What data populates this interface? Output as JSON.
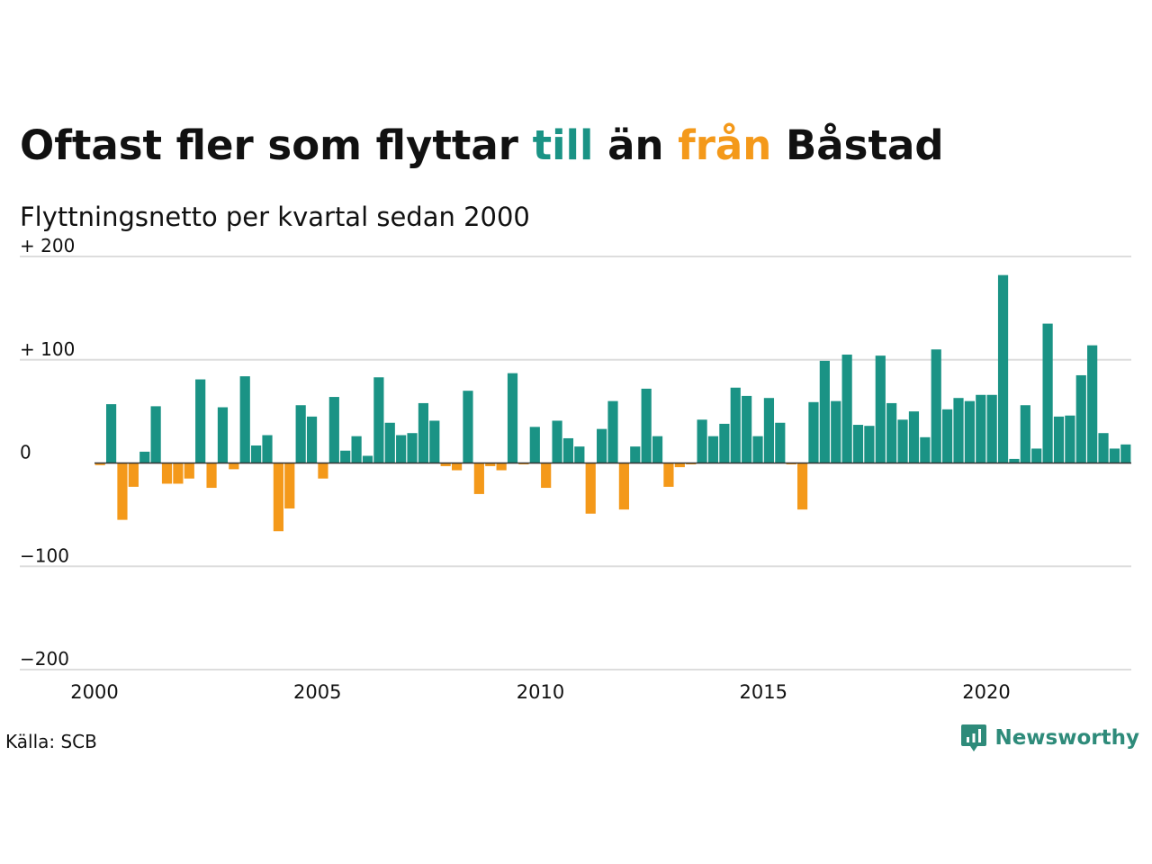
{
  "title": {
    "part1": "Oftast fler som flyttar ",
    "highlight_in": "till",
    "part2": " än ",
    "highlight_out": "från",
    "part3": " Båstad"
  },
  "subtitle": "Flyttningsnetto per kvartal sedan 2000",
  "source": "Källa: SCB",
  "brand": {
    "name": "Newsworthy",
    "icon": "newsworthy-logo-icon",
    "color": "#2e8b7a"
  },
  "colors": {
    "positive": "#1a9385",
    "negative": "#f4991a",
    "gridline": "#dddddd",
    "baseline": "#333333"
  },
  "chart_data": {
    "type": "bar",
    "x_start": 2000,
    "periods_per_year": 4,
    "values": [
      -2,
      57,
      -55,
      -23,
      11,
      55,
      -20,
      -20,
      -15,
      81,
      -24,
      54,
      -6,
      84,
      17,
      27,
      -66,
      -44,
      56,
      45,
      -15,
      64,
      12,
      26,
      7,
      83,
      39,
      27,
      29,
      58,
      41,
      -3,
      -7,
      70,
      -30,
      -3,
      -7,
      87,
      -1,
      35,
      -24,
      41,
      24,
      16,
      -49,
      33,
      60,
      -45,
      16,
      72,
      26,
      -23,
      -4,
      -1,
      42,
      26,
      38,
      73,
      65,
      26,
      63,
      39,
      -1,
      -45,
      59,
      99,
      60,
      105,
      37,
      36,
      104,
      58,
      42,
      50,
      25,
      110,
      52,
      63,
      60,
      66,
      66,
      182,
      4,
      56,
      14,
      135,
      45,
      46,
      85,
      114,
      29,
      14,
      18
    ],
    "ylim": [
      -200,
      200
    ],
    "y_ticks": [
      200,
      100,
      0,
      -100,
      -200
    ],
    "y_tick_labels": [
      "+ 200",
      "+ 100",
      "0",
      "−100",
      "−200"
    ],
    "x_ticks": [
      2000,
      2005,
      2010,
      2015,
      2020
    ],
    "x_tick_labels": [
      "2000",
      "2005",
      "2010",
      "2015",
      "2020"
    ],
    "grid": true,
    "legend": "none"
  }
}
